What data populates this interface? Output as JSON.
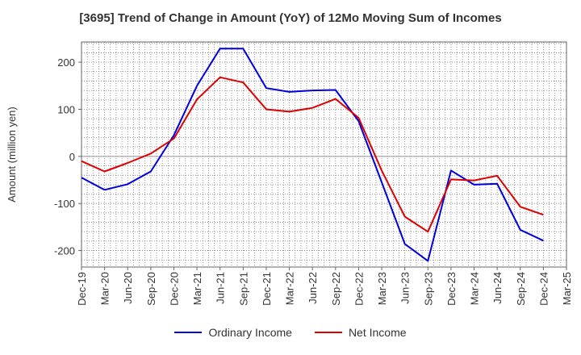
{
  "chart_data": {
    "type": "line",
    "title": "[3695]  Trend of Change in Amount (YoY) of 12Mo Moving Sum of Incomes",
    "xlabel": "",
    "ylabel": "Amount (million yen)",
    "ylim": [
      -235,
      243
    ],
    "yticks": [
      200,
      100,
      0,
      -100,
      -200
    ],
    "ytick_labels": [
      "200",
      "100",
      "0",
      "-100",
      "-200"
    ],
    "categories": [
      "Dec-19",
      "Mar-20",
      "Jun-20",
      "Sep-20",
      "Dec-20",
      "Mar-21",
      "Jun-21",
      "Sep-21",
      "Dec-21",
      "Mar-22",
      "Jun-22",
      "Sep-22",
      "Dec-22",
      "Mar-23",
      "Jun-23",
      "Sep-23",
      "Dec-23",
      "Mar-24",
      "Jun-24",
      "Sep-24",
      "Dec-24",
      "Mar-25"
    ],
    "series": [
      {
        "name": "Ordinary Income",
        "color": "#0000dd",
        "values": [
          -45,
          -71,
          -59,
          -32,
          45,
          150,
          229,
          229,
          145,
          137,
          140,
          141,
          75,
          -55,
          -186,
          -222,
          -30,
          -60,
          -58,
          -156,
          -179,
          null
        ]
      },
      {
        "name": "Net Income",
        "color": "#dd0000",
        "values": [
          -10,
          -32,
          -14,
          6,
          38,
          121,
          168,
          157,
          100,
          95,
          103,
          122,
          82,
          -30,
          -128,
          -160,
          -49,
          -51,
          -41,
          -107,
          -124,
          null
        ]
      }
    ],
    "grid": true,
    "legend_position": "bottom-center"
  }
}
